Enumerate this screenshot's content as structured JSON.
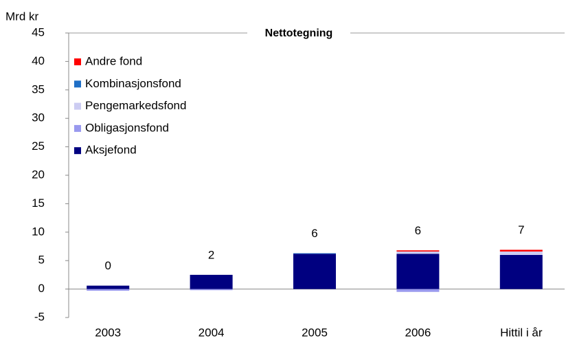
{
  "chart_data": {
    "type": "stacked_bar",
    "title": "Nettotegning",
    "y_label": "Mrd kr",
    "categories": [
      "2003",
      "2004",
      "2005",
      "2006",
      "Hittil i år"
    ],
    "series": [
      {
        "name": "Aksjefond",
        "color": "#000080",
        "values": [
          0.6,
          2.5,
          6.2,
          6.2,
          6.0
        ]
      },
      {
        "name": "Obligasjonsfond",
        "color": "#9999ee",
        "values": [
          -0.3,
          -0.2,
          0,
          -0.5,
          0
        ]
      },
      {
        "name": "Pengemarkedsfond",
        "color": "#ccccf2",
        "values": [
          0,
          0,
          0,
          0.4,
          0.6
        ]
      },
      {
        "name": "Kombinasjonsfond",
        "color": "#1f6fc6",
        "values": [
          0,
          0,
          0.1,
          0,
          0
        ]
      },
      {
        "name": "Andre fond",
        "color": "#ff0000",
        "values": [
          0,
          0,
          0,
          0.2,
          0.3
        ]
      }
    ],
    "data_labels": [
      "0",
      "2",
      "6",
      "6",
      "7"
    ],
    "ylim": [
      -5,
      45
    ],
    "yticks": [
      -5,
      0,
      5,
      10,
      15,
      20,
      25,
      30,
      35,
      40,
      45
    ],
    "legend": "top-left"
  }
}
